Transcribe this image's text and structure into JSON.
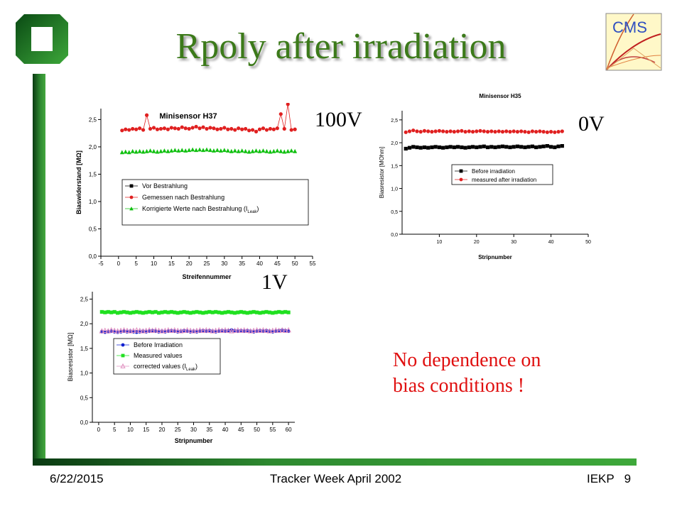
{
  "slide": {
    "title": "Rpoly after irradiation",
    "voltage_labels": [
      "100V",
      "0V",
      "1V"
    ],
    "note_line1": "No dependence on",
    "note_line2": "bias conditions !",
    "footer_date": "6/22/2015",
    "footer_center": "Tracker Week April 2002",
    "footer_right": "IEKP   9",
    "cms_logo_text": "CMS"
  },
  "colors": {
    "title": "#3c7a1a",
    "bar": "#2e8a30",
    "note": "#e01010"
  },
  "chart_data": [
    {
      "type": "scatter",
      "title": "Minisensor H37",
      "xlabel": "Streifennummer",
      "ylabel": "Biaswiderstand [MΩ]",
      "xlim": [
        -5,
        55
      ],
      "ylim": [
        0,
        2.7
      ],
      "xticks": [
        -5,
        0,
        5,
        10,
        15,
        20,
        25,
        30,
        35,
        40,
        45,
        50,
        55
      ],
      "xtick_labels": [
        "-5",
        "0",
        "5",
        "10",
        "15",
        "20",
        "25",
        "30",
        "35",
        "40",
        "45",
        "50",
        "55"
      ],
      "yticks": [
        0,
        0.5,
        1.0,
        1.5,
        2.0,
        2.5
      ],
      "ytick_labels": [
        "0,0",
        "0,5",
        "1,0",
        "1,5",
        "2,0",
        "2,5"
      ],
      "legend_position": "middle-left",
      "series": [
        {
          "name": "Vor Bestrahlung",
          "marker": "square",
          "color": "#000000",
          "show_points": false,
          "x": [],
          "y": []
        },
        {
          "name": "Gemessen nach Bestrahlung",
          "marker": "circle",
          "color": "#e02020",
          "line": true,
          "x": [
            1,
            2,
            3,
            4,
            5,
            6,
            7,
            8,
            9,
            10,
            11,
            12,
            13,
            14,
            15,
            16,
            17,
            18,
            19,
            20,
            21,
            22,
            23,
            24,
            25,
            26,
            27,
            28,
            29,
            30,
            31,
            32,
            33,
            34,
            35,
            36,
            37,
            38,
            39,
            40,
            41,
            42,
            43,
            44,
            45,
            46,
            47,
            48,
            49,
            50
          ],
          "y": [
            2.3,
            2.32,
            2.31,
            2.33,
            2.32,
            2.34,
            2.31,
            2.58,
            2.33,
            2.35,
            2.32,
            2.33,
            2.34,
            2.32,
            2.35,
            2.34,
            2.33,
            2.36,
            2.34,
            2.33,
            2.35,
            2.37,
            2.34,
            2.36,
            2.33,
            2.35,
            2.34,
            2.32,
            2.33,
            2.35,
            2.32,
            2.33,
            2.31,
            2.34,
            2.32,
            2.33,
            2.3,
            2.31,
            2.28,
            2.32,
            2.34,
            2.31,
            2.33,
            2.32,
            2.34,
            2.6,
            2.33,
            2.78,
            2.31,
            2.32
          ]
        },
        {
          "name": "Korrigierte Werte nach Bestrahlung (I",
          "name_sub": "Leak",
          "name_suffix": ")",
          "marker": "triangle",
          "color": "#10c010",
          "x": [
            1,
            2,
            3,
            4,
            5,
            6,
            7,
            8,
            9,
            10,
            11,
            12,
            13,
            14,
            15,
            16,
            17,
            18,
            19,
            20,
            21,
            22,
            23,
            24,
            25,
            26,
            27,
            28,
            29,
            30,
            31,
            32,
            33,
            34,
            35,
            36,
            37,
            38,
            39,
            40,
            41,
            42,
            43,
            44,
            45,
            46,
            47,
            48,
            49,
            50
          ],
          "y": [
            1.9,
            1.91,
            1.9,
            1.92,
            1.91,
            1.92,
            1.91,
            1.92,
            1.93,
            1.92,
            1.91,
            1.92,
            1.93,
            1.92,
            1.93,
            1.94,
            1.93,
            1.94,
            1.93,
            1.94,
            1.95,
            1.94,
            1.95,
            1.94,
            1.95,
            1.94,
            1.93,
            1.94,
            1.93,
            1.94,
            1.93,
            1.92,
            1.93,
            1.92,
            1.93,
            1.92,
            1.91,
            1.92,
            1.93,
            1.92,
            1.93,
            1.92,
            1.91,
            1.92,
            1.93,
            1.92,
            1.91,
            1.92,
            1.93,
            1.92
          ]
        }
      ]
    },
    {
      "type": "scatter",
      "title": "Minisensor H35",
      "xlabel": "Stripnumber",
      "ylabel": "Biasresistor [MOhm]",
      "xlim": [
        0,
        50
      ],
      "ylim": [
        0,
        2.7
      ],
      "xticks": [
        10,
        20,
        30,
        40,
        50
      ],
      "xtick_labels": [
        "10",
        "20",
        "30",
        "40",
        "50"
      ],
      "yticks": [
        0,
        0.5,
        1.0,
        1.5,
        2.0,
        2.5
      ],
      "ytick_labels": [
        "0,0",
        "0,5",
        "1,0",
        "1,5",
        "2,0",
        "2,5"
      ],
      "legend_position": "middle-right",
      "series": [
        {
          "name": "Before irradiation",
          "marker": "square",
          "color": "#000000",
          "x": [
            1,
            2,
            3,
            4,
            5,
            6,
            7,
            8,
            9,
            10,
            11,
            12,
            13,
            14,
            15,
            16,
            17,
            18,
            19,
            20,
            21,
            22,
            23,
            24,
            25,
            26,
            27,
            28,
            29,
            30,
            31,
            32,
            33,
            34,
            35,
            36,
            37,
            38,
            39,
            40,
            41,
            42,
            43
          ],
          "y": [
            1.87,
            1.89,
            1.91,
            1.9,
            1.89,
            1.9,
            1.89,
            1.9,
            1.91,
            1.9,
            1.89,
            1.9,
            1.91,
            1.9,
            1.91,
            1.9,
            1.89,
            1.9,
            1.91,
            1.9,
            1.91,
            1.92,
            1.9,
            1.91,
            1.9,
            1.91,
            1.92,
            1.91,
            1.9,
            1.91,
            1.92,
            1.91,
            1.9,
            1.91,
            1.92,
            1.9,
            1.91,
            1.92,
            1.93,
            1.91,
            1.9,
            1.92,
            1.93
          ]
        },
        {
          "name": "measured after irradiation",
          "marker": "circle",
          "color": "#e02020",
          "x": [
            1,
            2,
            3,
            4,
            5,
            6,
            7,
            8,
            9,
            10,
            11,
            12,
            13,
            14,
            15,
            16,
            17,
            18,
            19,
            20,
            21,
            22,
            23,
            24,
            25,
            26,
            27,
            28,
            29,
            30,
            31,
            32,
            33,
            34,
            35,
            36,
            37,
            38,
            39,
            40,
            41,
            42,
            43
          ],
          "y": [
            2.23,
            2.25,
            2.27,
            2.25,
            2.24,
            2.26,
            2.25,
            2.24,
            2.25,
            2.26,
            2.25,
            2.24,
            2.25,
            2.24,
            2.25,
            2.26,
            2.24,
            2.25,
            2.24,
            2.25,
            2.26,
            2.25,
            2.24,
            2.25,
            2.24,
            2.25,
            2.24,
            2.25,
            2.24,
            2.25,
            2.24,
            2.25,
            2.24,
            2.23,
            2.25,
            2.24,
            2.25,
            2.24,
            2.23,
            2.24,
            2.23,
            2.24,
            2.25
          ]
        }
      ]
    },
    {
      "type": "scatter",
      "xlabel": "Stripnumber",
      "ylabel": "Biasresistor [MΩ]",
      "xlim": [
        -2,
        62
      ],
      "ylim": [
        0,
        2.65
      ],
      "xticks": [
        0,
        5,
        10,
        15,
        20,
        25,
        30,
        35,
        40,
        45,
        50,
        55,
        60
      ],
      "xtick_labels": [
        "0",
        "5",
        "10",
        "15",
        "20",
        "25",
        "30",
        "35",
        "40",
        "45",
        "50",
        "55",
        "60"
      ],
      "yticks": [
        0,
        0.5,
        1.0,
        1.5,
        2.0,
        2.5
      ],
      "ytick_labels": [
        "0,0",
        "0,5",
        "1,0",
        "1,5",
        "2,0",
        "2,5"
      ],
      "legend_position": "middle-left",
      "series": [
        {
          "name": "Before Irradiation",
          "marker": "circle",
          "color": "#1020d0",
          "x": [
            1,
            2,
            3,
            4,
            5,
            6,
            7,
            8,
            9,
            10,
            11,
            12,
            13,
            14,
            15,
            16,
            17,
            18,
            19,
            20,
            21,
            22,
            23,
            24,
            25,
            26,
            27,
            28,
            29,
            30,
            31,
            32,
            33,
            34,
            35,
            36,
            37,
            38,
            39,
            40,
            41,
            42,
            43,
            44,
            45,
            46,
            47,
            48,
            49,
            50,
            51,
            52,
            53,
            54,
            55,
            56,
            57,
            58,
            59,
            60
          ],
          "y": [
            1.84,
            1.83,
            1.84,
            1.85,
            1.84,
            1.83,
            1.84,
            1.85,
            1.84,
            1.85,
            1.84,
            1.83,
            1.84,
            1.85,
            1.84,
            1.85,
            1.86,
            1.85,
            1.84,
            1.85,
            1.84,
            1.85,
            1.86,
            1.85,
            1.84,
            1.85,
            1.86,
            1.85,
            1.84,
            1.85,
            1.84,
            1.85,
            1.86,
            1.85,
            1.86,
            1.85,
            1.84,
            1.85,
            1.86,
            1.85,
            1.86,
            1.87,
            1.86,
            1.85,
            1.86,
            1.85,
            1.86,
            1.85,
            1.84,
            1.85,
            1.86,
            1.85,
            1.86,
            1.85,
            1.84,
            1.85,
            1.86,
            1.87,
            1.86,
            1.85
          ]
        },
        {
          "name": "Measured values",
          "marker": "square",
          "color": "#20e020",
          "x": [
            1,
            2,
            3,
            4,
            5,
            6,
            7,
            8,
            9,
            10,
            11,
            12,
            13,
            14,
            15,
            16,
            17,
            18,
            19,
            20,
            21,
            22,
            23,
            24,
            25,
            26,
            27,
            28,
            29,
            30,
            31,
            32,
            33,
            34,
            35,
            36,
            37,
            38,
            39,
            40,
            41,
            42,
            43,
            44,
            45,
            46,
            47,
            48,
            49,
            50,
            51,
            52,
            53,
            54,
            55,
            56,
            57,
            58,
            59,
            60
          ],
          "y": [
            2.24,
            2.23,
            2.24,
            2.23,
            2.24,
            2.22,
            2.23,
            2.24,
            2.23,
            2.22,
            2.23,
            2.24,
            2.23,
            2.22,
            2.23,
            2.24,
            2.23,
            2.24,
            2.22,
            2.23,
            2.24,
            2.23,
            2.24,
            2.23,
            2.22,
            2.23,
            2.24,
            2.23,
            2.22,
            2.23,
            2.24,
            2.23,
            2.22,
            2.23,
            2.24,
            2.23,
            2.24,
            2.23,
            2.22,
            2.23,
            2.24,
            2.23,
            2.22,
            2.23,
            2.24,
            2.23,
            2.22,
            2.23,
            2.24,
            2.23,
            2.22,
            2.23,
            2.24,
            2.23,
            2.22,
            2.23,
            2.24,
            2.23,
            2.24,
            2.23
          ]
        },
        {
          "name": "corrected values (I",
          "name_sub": "Leak",
          "name_suffix": ")",
          "marker": "triangle-open",
          "color": "#e090c0",
          "line": true,
          "x": [
            1,
            2,
            3,
            4,
            5,
            6,
            7,
            8,
            9,
            10,
            11,
            12,
            13,
            14,
            15,
            16,
            17,
            18,
            19,
            20,
            21,
            22,
            23,
            24,
            25,
            26,
            27,
            28,
            29,
            30,
            31,
            32,
            33,
            34,
            35,
            36,
            37,
            38,
            39,
            40,
            41,
            42,
            43,
            44,
            45,
            46,
            47,
            48,
            49,
            50,
            51,
            52,
            53,
            54,
            55,
            56,
            57,
            58,
            59,
            60
          ],
          "y": [
            1.85,
            1.86,
            1.85,
            1.87,
            1.86,
            1.85,
            1.86,
            1.87,
            1.86,
            1.85,
            1.86,
            1.87,
            1.86,
            1.85,
            1.86,
            1.87,
            1.86,
            1.87,
            1.86,
            1.85,
            1.86,
            1.87,
            1.86,
            1.87,
            1.86,
            1.85,
            1.86,
            1.87,
            1.86,
            1.85,
            1.86,
            1.87,
            1.86,
            1.87,
            1.86,
            1.85,
            1.86,
            1.87,
            1.86,
            1.87,
            1.86,
            1.85,
            1.86,
            1.87,
            1.86,
            1.87,
            1.86,
            1.85,
            1.86,
            1.87,
            1.86,
            1.87,
            1.86,
            1.85,
            1.86,
            1.87,
            1.86,
            1.87,
            1.86,
            1.87
          ]
        }
      ]
    }
  ]
}
